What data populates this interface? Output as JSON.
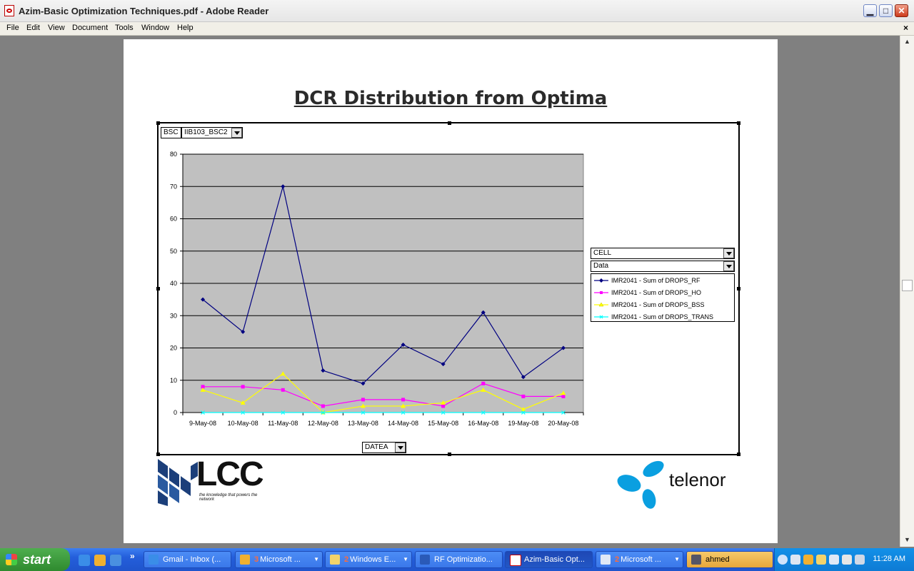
{
  "window": {
    "title": "Azim-Basic Optimization Techniques.pdf - Adobe Reader",
    "controls": {
      "minimize": "▁",
      "maximize": "□",
      "close": "✕"
    }
  },
  "menu": {
    "items": [
      "File",
      "Edit",
      "View",
      "Document",
      "Tools",
      "Window",
      "Help"
    ],
    "close_doc": "×"
  },
  "page": {
    "heading": "DCR Distribution from Optima",
    "pivot": {
      "page_field_label": "BSC",
      "page_field_value": "IIB103_BSC2",
      "series_field": "CELL",
      "data_field": "Data",
      "category_field": "DATEA"
    },
    "logos": {
      "lcc_text": "LCC",
      "lcc_tagline": "the knowledge that powers the network",
      "telenor_text": "telenor"
    }
  },
  "chart_data": {
    "type": "line",
    "categories": [
      "9-May-08",
      "10-May-08",
      "11-May-08",
      "12-May-08",
      "13-May-08",
      "14-May-08",
      "15-May-08",
      "16-May-08",
      "19-May-08",
      "20-May-08"
    ],
    "ylim": [
      0,
      80
    ],
    "yticks": [
      0,
      10,
      20,
      30,
      40,
      50,
      60,
      70,
      80
    ],
    "grid": true,
    "legend_position": "right",
    "series": [
      {
        "name": "IMR2041 - Sum of DROPS_RF",
        "color": "#000080",
        "marker": "diamond",
        "values": [
          35,
          25,
          70,
          13,
          9,
          21,
          15,
          31,
          11,
          20
        ]
      },
      {
        "name": "IMR2041 - Sum of DROPS_HO",
        "color": "#ff00ff",
        "marker": "square",
        "values": [
          8,
          8,
          7,
          2,
          4,
          4,
          2,
          9,
          5,
          5
        ]
      },
      {
        "name": "IMR2041 - Sum of DROPS_BSS",
        "color": "#ffff00",
        "marker": "triangle",
        "values": [
          7,
          3,
          12,
          0,
          2,
          2,
          3,
          7,
          1,
          6
        ]
      },
      {
        "name": "IMR2041 - Sum of DROPS_TRANS",
        "color": "#00ffff",
        "marker": "x",
        "values": [
          0,
          0,
          0,
          0,
          0,
          0,
          0,
          0,
          0,
          0
        ]
      }
    ]
  },
  "taskbar": {
    "start": "start",
    "quicklaunch_more": "»",
    "tasks": [
      {
        "label": "Gmail - Inbox (...",
        "count": ""
      },
      {
        "label": "Microsoft ...",
        "count": "3"
      },
      {
        "label": "Windows E...",
        "count": "2"
      },
      {
        "label": "RF Optimizatio...",
        "count": ""
      },
      {
        "label": "Azim-Basic Opt...",
        "count": ""
      },
      {
        "label": "Microsoft ...",
        "count": "2"
      },
      {
        "label": "ahmed",
        "count": ""
      }
    ],
    "clock": "11:28 AM"
  }
}
